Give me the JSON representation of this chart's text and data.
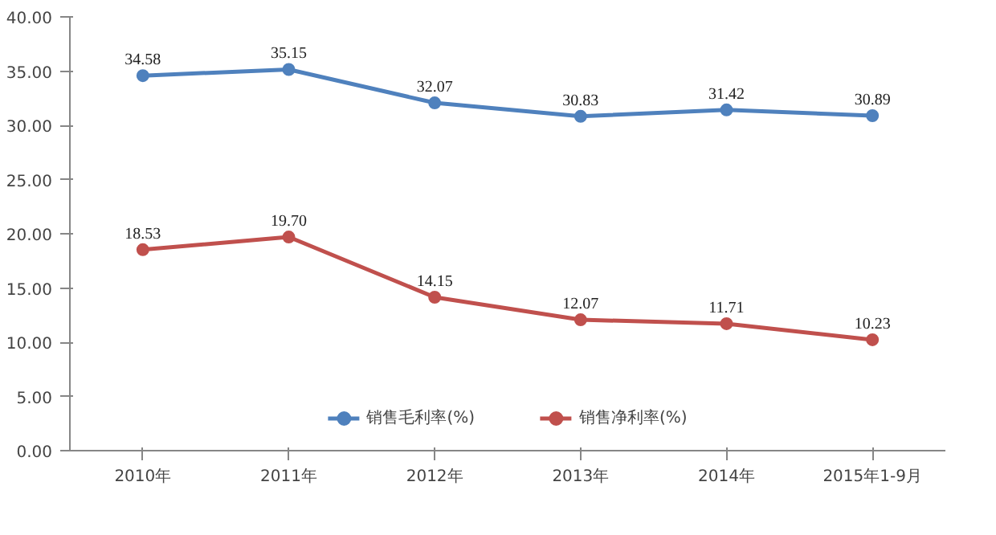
{
  "chart_data": {
    "type": "line",
    "categories": [
      "2010年",
      "2011年",
      "2012年",
      "2013年",
      "2014年",
      "2015年1-9月"
    ],
    "series": [
      {
        "name": "销售毛利率(%)",
        "color": "#4f81bd",
        "values": [
          34.58,
          35.15,
          32.07,
          30.83,
          31.42,
          30.89
        ]
      },
      {
        "name": "销售净利率(%)",
        "color": "#c0504d",
        "values": [
          18.53,
          19.7,
          14.15,
          12.07,
          11.71,
          10.23
        ]
      }
    ],
    "ylim": [
      0,
      40
    ],
    "yticks": [
      {
        "value": 0,
        "label": "0.00"
      },
      {
        "value": 5,
        "label": "5.00"
      },
      {
        "value": 10,
        "label": "10.00"
      },
      {
        "value": 15,
        "label": "15.00"
      },
      {
        "value": 20,
        "label": "20.00"
      },
      {
        "value": 25,
        "label": "25.00"
      },
      {
        "value": 30,
        "label": "30.00"
      },
      {
        "value": 35,
        "label": "35.00"
      },
      {
        "value": 40,
        "label": "40.00"
      }
    ],
    "value_labels": [
      [
        "34.58",
        "35.15",
        "32.07",
        "30.83",
        "31.42",
        "30.89"
      ],
      [
        "18.53",
        "19.70",
        "14.15",
        "12.07",
        "11.71",
        "10.23"
      ]
    ],
    "marker": "circle",
    "line_style": "solid",
    "legend": "bottom",
    "grid": false
  }
}
